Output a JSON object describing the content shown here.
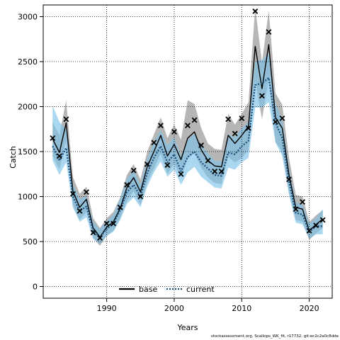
{
  "chart_data": {
    "type": "line",
    "xlabel": "Years",
    "ylabel": "Catch",
    "xlim": [
      1980.6,
      2023.4
    ],
    "ylim": [
      -130,
      3130
    ],
    "x_ticks": [
      1990,
      2000,
      2010,
      2020
    ],
    "y_ticks": [
      0,
      500,
      1000,
      1500,
      2000,
      2500,
      3000
    ],
    "grid": true,
    "legend_position": "bottom-center",
    "footnote": "stockassessment.org, Scallops_WK_fit, r17732, git:ec2c2a0c8dde",
    "colors": {
      "base_line": "#000000",
      "base_band": "#a9a9a9",
      "current_line": "#1b4e7a",
      "current_band": "#7ec3e8",
      "observed_marker": "#000000",
      "grid": "#000000"
    },
    "years": [
      1982,
      1983,
      1984,
      1985,
      1986,
      1987,
      1988,
      1989,
      1990,
      1991,
      1992,
      1993,
      1994,
      1995,
      1996,
      1997,
      1998,
      1999,
      2000,
      2001,
      2002,
      2003,
      2004,
      2005,
      2006,
      2007,
      2008,
      2009,
      2010,
      2011,
      2012,
      2013,
      2014,
      2015,
      2016,
      2017,
      2018,
      2019,
      2020,
      2021,
      2022
    ],
    "observed": [
      1650,
      1450,
      1860,
      1030,
      840,
      1050,
      600,
      540,
      700,
      700,
      880,
      1130,
      1290,
      1000,
      1360,
      1600,
      1790,
      1350,
      1720,
      1250,
      1790,
      1850,
      1570,
      1400,
      1280,
      1280,
      1860,
      1700,
      1870,
      1760,
      3060,
      2120,
      2830,
      1830,
      1870,
      1190,
      860,
      940,
      620,
      680,
      740
    ],
    "series": [
      {
        "name": "base",
        "values": [
          1640,
          1490,
          1820,
          1060,
          880,
          970,
          650,
          550,
          660,
          720,
          870,
          1100,
          1210,
          1050,
          1330,
          1500,
          1680,
          1450,
          1580,
          1410,
          1650,
          1720,
          1520,
          1400,
          1340,
          1330,
          1680,
          1590,
          1680,
          1780,
          2670,
          2200,
          2690,
          1880,
          1760,
          1240,
          880,
          860,
          620,
          690,
          750
        ],
        "lower": [
          1450,
          1300,
          1620,
          900,
          740,
          830,
          540,
          450,
          570,
          620,
          760,
          950,
          1060,
          910,
          1160,
          1310,
          1480,
          1250,
          1370,
          1210,
          1420,
          1480,
          1320,
          1210,
          1150,
          1140,
          1440,
          1380,
          1430,
          1510,
          2280,
          1860,
          2300,
          1610,
          1500,
          1050,
          740,
          720,
          520,
          590,
          650
        ],
        "upper": [
          1830,
          1680,
          2070,
          1220,
          1030,
          1110,
          760,
          650,
          760,
          830,
          990,
          1240,
          1360,
          1190,
          1500,
          1690,
          1880,
          1650,
          1800,
          1630,
          2070,
          2030,
          1760,
          1590,
          1530,
          1520,
          1920,
          1800,
          1920,
          2050,
          3100,
          2490,
          3070,
          2150,
          2020,
          1430,
          1020,
          1000,
          720,
          790,
          850
        ]
      },
      {
        "name": "current",
        "values": [
          1560,
          1400,
          1540,
          1000,
          840,
          890,
          620,
          550,
          640,
          700,
          850,
          1050,
          1130,
          1000,
          1260,
          1430,
          1560,
          1380,
          1470,
          1280,
          1440,
          1500,
          1380,
          1310,
          1240,
          1230,
          1490,
          1470,
          1560,
          1620,
          2240,
          2260,
          2320,
          1820,
          1650,
          1170,
          820,
          800,
          610,
          670,
          670
        ],
        "lower": [
          1400,
          1240,
          1380,
          880,
          720,
          770,
          530,
          470,
          560,
          610,
          740,
          920,
          990,
          880,
          1110,
          1270,
          1390,
          1220,
          1300,
          1130,
          1270,
          1330,
          1220,
          1160,
          1100,
          1090,
          1320,
          1300,
          1380,
          1430,
          1990,
          1990,
          2050,
          1600,
          1450,
          1020,
          710,
          690,
          530,
          580,
          580
        ],
        "upper": [
          2010,
          1830,
          1750,
          1140,
          970,
          1010,
          720,
          640,
          730,
          800,
          980,
          1200,
          1290,
          1130,
          1420,
          1600,
          1740,
          1570,
          1660,
          1450,
          1630,
          1700,
          1570,
          1480,
          1400,
          1390,
          1690,
          1660,
          1760,
          1830,
          2500,
          2520,
          2590,
          2040,
          1850,
          1320,
          930,
          910,
          700,
          760,
          860
        ]
      }
    ]
  }
}
